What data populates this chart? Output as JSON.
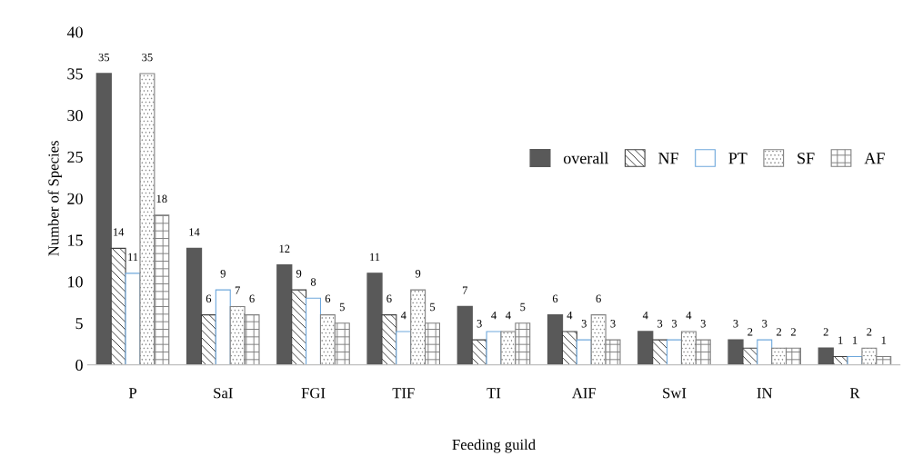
{
  "chart_data": {
    "type": "bar",
    "xlabel": "Feeding guild",
    "ylabel": "Number of Species",
    "categories": [
      "P",
      "SaI",
      "FGI",
      "TIF",
      "TI",
      "AIF",
      "SwI",
      "IN",
      "R"
    ],
    "series": [
      {
        "name": "overall",
        "color": "#595959",
        "values": [
          35,
          14,
          12,
          11,
          7,
          6,
          4,
          3,
          2
        ]
      },
      {
        "name": "NF",
        "color": "#404040",
        "values": [
          14,
          6,
          9,
          6,
          3,
          4,
          3,
          2,
          1
        ]
      },
      {
        "name": "PT",
        "color": "#6fa8dc",
        "values": [
          11,
          9,
          8,
          4,
          4,
          3,
          3,
          3,
          1
        ]
      },
      {
        "name": "SF",
        "color": "#808080",
        "values": [
          35,
          7,
          6,
          9,
          4,
          6,
          4,
          2,
          2
        ]
      },
      {
        "name": "AF",
        "color": "#7f7f7f",
        "values": [
          18,
          6,
          5,
          5,
          5,
          3,
          3,
          2,
          1
        ]
      }
    ],
    "ylim": [
      0,
      40
    ],
    "yticks": [
      0,
      5,
      10,
      15,
      20,
      25,
      30,
      35,
      40
    ],
    "data_labels": true,
    "legend": "right",
    "grid": false
  }
}
